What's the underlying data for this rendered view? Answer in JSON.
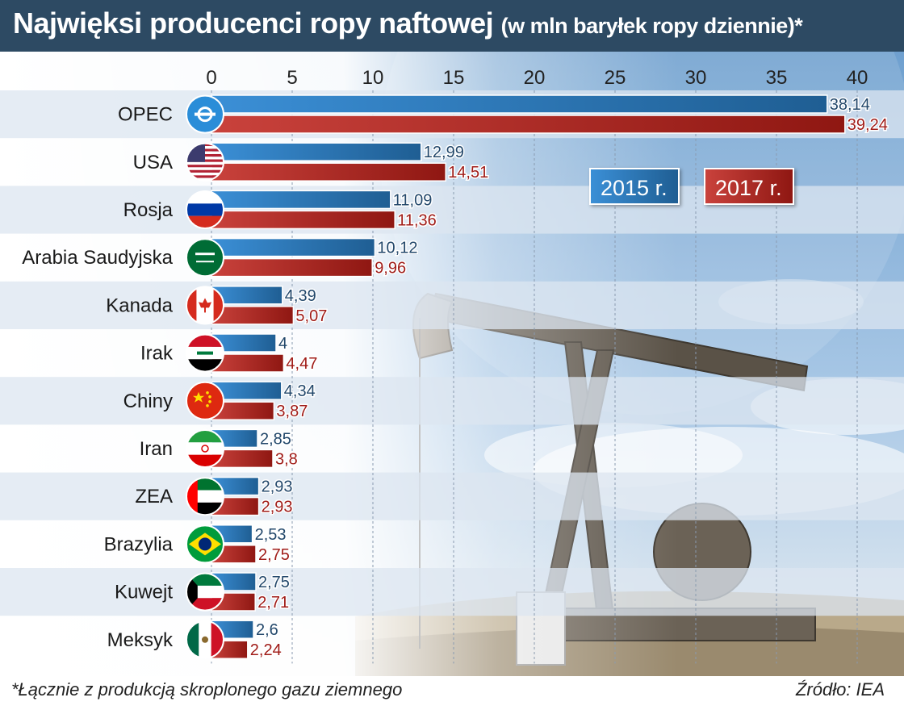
{
  "title": {
    "main": "Najwięksi producenci ropy naftowej",
    "sub": "(w mln baryłek ropy dziennie)*"
  },
  "footnote": "*Łącznie z produkcją skroplonego gazu ziemnego",
  "source": "Źródło: IEA",
  "colors": {
    "header_bg": "#2d4a63",
    "series_2015": "#3b8fd6",
    "series_2015_dark": "#1f5e93",
    "series_2017": "#c9423c",
    "series_2017_dark": "#8f1712",
    "label_2015": "#23486b",
    "label_2017": "#a01c18",
    "row_stripe": "#dce6f0"
  },
  "chart_data": {
    "type": "bar",
    "orientation": "horizontal",
    "categories": [
      "OPEC",
      "USA",
      "Rosja",
      "Arabia Saudyjska",
      "Kanada",
      "Irak",
      "Chiny",
      "Iran",
      "ZEA",
      "Brazylia",
      "Kuwejt",
      "Meksyk"
    ],
    "category_icons": [
      "opec-logo-icon",
      "us-flag-icon",
      "russia-flag-icon",
      "saudi-flag-icon",
      "canada-flag-icon",
      "iraq-flag-icon",
      "china-flag-icon",
      "iran-flag-icon",
      "uae-flag-icon",
      "brazil-flag-icon",
      "kuwait-flag-icon",
      "mexico-flag-icon"
    ],
    "series": [
      {
        "name": "2015 r.",
        "values": [
          38.14,
          12.99,
          11.09,
          10.12,
          4.39,
          4,
          4.34,
          2.85,
          2.93,
          2.53,
          2.75,
          2.6
        ],
        "labels": [
          "38,14",
          "12,99",
          "11,09",
          "10,12",
          "4,39",
          "4",
          "4,34",
          "2,85",
          "2,93",
          "2,53",
          "2,75",
          "2,6"
        ]
      },
      {
        "name": "2017 r.",
        "values": [
          39.24,
          14.51,
          11.36,
          9.96,
          5.07,
          4.47,
          3.87,
          3.8,
          2.93,
          2.75,
          2.71,
          2.24
        ],
        "labels": [
          "39,24",
          "14,51",
          "11,36",
          "9,96",
          "5,07",
          "4,47",
          "3,87",
          "3,8",
          "2,93",
          "2,75",
          "2,71",
          "2,24"
        ]
      }
    ],
    "xlim": [
      0,
      40
    ],
    "xticks": [
      "0",
      "5",
      "10",
      "15",
      "20",
      "25",
      "30",
      "35",
      "40"
    ],
    "xtick_values": [
      0,
      5,
      10,
      15,
      20,
      25,
      30,
      35,
      40
    ],
    "x_axis_position": "top",
    "grid": "vertical dashed",
    "legend_placement": "top-right"
  }
}
